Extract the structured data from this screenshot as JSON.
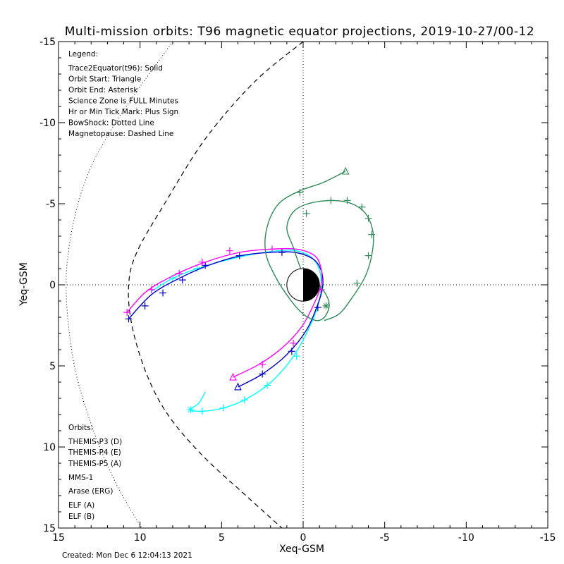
{
  "chart_data": {
    "type": "scatter",
    "title": "Multi-mission orbits: T96 magnetic equator projections, 2019-10-27/00-12",
    "xlabel": "Xeq-GSM",
    "ylabel": "Yeq-GSM",
    "xlim": [
      15,
      -15
    ],
    "ylim": [
      -15,
      15
    ],
    "x_ticks": [
      "15",
      "10",
      "5",
      "0",
      "-5",
      "-10",
      "-15"
    ],
    "y_ticks": [
      "-15",
      "-10",
      "-5",
      "0",
      "5",
      "10",
      "15"
    ],
    "legend": {
      "header": "Legend:",
      "lines": [
        "Trace2Equator(t96): Solid",
        "Orbit Start: Triangle",
        "Orbit End: Asterisk",
        "Science Zone is FULL Minutes",
        "Hr or Min Tick Mark: Plus Sign",
        "BowShock: Dotted Line",
        "Magnetopause: Dashed Line"
      ]
    },
    "orbits_header": "Orbits:",
    "missions": [
      {
        "name": "THEMIS-P3 (D)",
        "color": "#00ffff"
      },
      {
        "name": "THEMIS-P4 (E)",
        "color": "#0000cc"
      },
      {
        "name": "THEMIS-P5 (A)",
        "color": "#ff00ff"
      },
      {
        "name": "MMS-1",
        "color": "#000000"
      },
      {
        "name": "Arase (ERG)",
        "color": "#2e8b57"
      },
      {
        "name": "ELF (A)",
        "color": "#3a7dd6"
      },
      {
        "name": "ELF (B)",
        "color": "#dd0000"
      }
    ],
    "series": [
      {
        "mission": "THEMIS-P3 (D)",
        "color": "#00ffff",
        "x": [
          6.0,
          6.4,
          6.9,
          6.2,
          4.9,
          3.6,
          2.2,
          1.2,
          0.4,
          -0.3,
          -0.9,
          -1.1,
          -1.0,
          -0.5,
          0.4,
          1.5,
          3.0,
          4.8,
          6.5,
          8.0,
          9.3
        ],
        "y": [
          6.6,
          7.3,
          7.7,
          7.8,
          7.6,
          7.1,
          6.2,
          5.2,
          4.1,
          2.8,
          1.3,
          0.1,
          -0.9,
          -1.7,
          -2.1,
          -2.1,
          -1.9,
          -1.5,
          -1.0,
          -0.4,
          0.4
        ],
        "plus": [
          [
            6.2,
            7.8
          ],
          [
            4.9,
            7.6
          ],
          [
            3.6,
            7.1
          ],
          [
            2.2,
            6.2
          ],
          [
            0.4,
            4.4
          ],
          [
            -1.0,
            0.1
          ],
          [
            6.5,
            -1.0
          ],
          [
            8.0,
            -0.4
          ]
        ],
        "start": null,
        "end": [
          6.9,
          7.7
        ]
      },
      {
        "mission": "THEMIS-P4 (E)",
        "color": "#0000cc",
        "x": [
          4.0,
          2.5,
          1.0,
          -0.2,
          -0.9,
          -1.2,
          -1.1,
          -0.6,
          0.5,
          2.0,
          3.8,
          5.8,
          7.6,
          9.3,
          10.7
        ],
        "y": [
          6.3,
          5.5,
          4.3,
          2.8,
          1.2,
          0.1,
          -0.9,
          -1.6,
          -2.0,
          -2.0,
          -1.8,
          -1.2,
          -0.4,
          0.6,
          2.1
        ],
        "plus": [
          [
            2.5,
            5.5
          ],
          [
            0.7,
            4.1
          ],
          [
            -0.9,
            1.4
          ],
          [
            1.3,
            -2.0
          ],
          [
            3.9,
            -1.8
          ],
          [
            6.0,
            -1.2
          ],
          [
            7.4,
            -0.3
          ],
          [
            8.6,
            0.5
          ],
          [
            9.7,
            1.3
          ],
          [
            10.7,
            2.1
          ]
        ],
        "start": [
          4.0,
          6.3
        ],
        "end": null
      },
      {
        "mission": "THEMIS-P5 (A)",
        "color": "#ff00ff",
        "x": [
          4.3,
          2.7,
          1.3,
          0.1,
          -0.7,
          -1.1,
          -1.1,
          -0.7,
          0.4,
          2.0,
          3.9,
          6.0,
          7.9,
          9.6,
          10.8
        ],
        "y": [
          5.7,
          4.9,
          3.9,
          2.6,
          1.1,
          0.0,
          -1.0,
          -1.8,
          -2.2,
          -2.2,
          -2.0,
          -1.4,
          -0.6,
          0.4,
          1.7
        ],
        "plus": [
          [
            2.5,
            4.9
          ],
          [
            0.6,
            3.6
          ],
          [
            -1.1,
            0.3
          ],
          [
            1.9,
            -2.2
          ],
          [
            4.5,
            -2.1
          ],
          [
            6.2,
            -1.4
          ],
          [
            7.6,
            -0.7
          ],
          [
            9.3,
            0.3
          ],
          [
            10.8,
            1.7
          ]
        ],
        "start": [
          4.3,
          5.7
        ],
        "end": null
      },
      {
        "mission": "Arase (ERG)",
        "color": "#2e8b57",
        "x": [
          -2.6,
          -1.2,
          0.2,
          1.5,
          2.2,
          2.3,
          1.7,
          0.8,
          0.0,
          -0.8,
          -1.3,
          -1.6,
          -1.4,
          -0.7,
          0.0,
          0.6,
          1.0,
          0.6,
          -0.3,
          -1.7,
          -3.0,
          -3.9,
          -4.3,
          -4.2,
          -3.8,
          -3.0,
          -2.2,
          -1.3
        ],
        "y": [
          -7.0,
          -6.3,
          -5.8,
          -5.0,
          -3.6,
          -2.0,
          -0.5,
          0.9,
          1.8,
          2.2,
          2.0,
          1.3,
          0.6,
          -0.3,
          -0.7,
          -2.3,
          -3.5,
          -4.5,
          -5.0,
          -5.2,
          -5.0,
          -4.3,
          -3.1,
          -1.8,
          -0.5,
          0.8,
          1.8,
          2.2
        ],
        "plus": [
          [
            0.2,
            -5.7
          ],
          [
            -0.2,
            -4.4
          ],
          [
            -1.7,
            -5.2
          ],
          [
            -2.7,
            -5.2
          ],
          [
            -3.6,
            -4.8
          ],
          [
            -4.0,
            -4.1
          ],
          [
            -4.2,
            -3.1
          ],
          [
            -4.0,
            -1.8
          ],
          [
            -3.3,
            -0.1
          ]
        ],
        "start": [
          -2.6,
          -7.0
        ],
        "end": [
          -1.4,
          1.3
        ]
      }
    ],
    "bowshock": {
      "style": "dotted",
      "x": [
        8.0,
        11.5,
        13.5,
        14.5,
        14.2,
        13.2,
        11.6,
        9.9
      ],
      "y": [
        -15.0,
        -10.0,
        -6.0,
        -1.0,
        4.0,
        8.0,
        12.0,
        15.0
      ]
    },
    "magnetopause": {
      "style": "dashed",
      "x": [
        0.0,
        3.0,
        6.0,
        8.5,
        10.2,
        10.7,
        10.5,
        9.6,
        8.3,
        6.2,
        3.5,
        1.3
      ],
      "y": [
        -15.0,
        -12.5,
        -9.0,
        -5.0,
        -2.0,
        0.0,
        2.5,
        5.5,
        8.0,
        10.5,
        13.0,
        15.0
      ]
    },
    "grid": false,
    "zero_lines": true,
    "legend_position": "top-left",
    "created": "Created: Mon Dec  6 12:04:13 2021"
  }
}
